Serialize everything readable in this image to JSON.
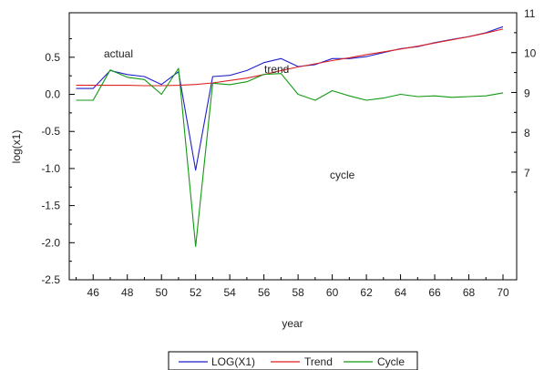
{
  "chart_data": {
    "type": "line",
    "xlabel": "year",
    "x_ticks": [
      "46",
      "48",
      "50",
      "52",
      "54",
      "56",
      "58",
      "60",
      "62",
      "64",
      "66",
      "68",
      "70"
    ],
    "left_axis": {
      "label": "log(x1)",
      "range": [
        -2.5,
        1.1
      ],
      "ticks": [
        "-2.5",
        "-2.0",
        "-1.5",
        "-1.0",
        "-0.5",
        "0.0",
        "0.5"
      ]
    },
    "right_axis": {
      "range": [
        4.3,
        11
      ],
      "ticks": [
        "7",
        "8",
        "9",
        "10",
        "11"
      ]
    },
    "annotations": [
      {
        "text": "actual",
        "series": "LOG(X1)"
      },
      {
        "text": "trend",
        "series": "Trend"
      },
      {
        "text": "cycle",
        "series": "Cycle"
      }
    ],
    "x": [
      45,
      46,
      47,
      48,
      49,
      50,
      51,
      52,
      53,
      54,
      55,
      56,
      57,
      58,
      59,
      60,
      61,
      62,
      63,
      64,
      65,
      66,
      67,
      68,
      69,
      70
    ],
    "series": [
      {
        "name": "LOG(X1)",
        "axis": "right",
        "color": "#1f1fcc",
        "values": [
          9.1,
          9.1,
          9.55,
          9.45,
          9.4,
          9.2,
          9.52,
          7.05,
          9.4,
          9.43,
          9.55,
          9.75,
          9.85,
          9.65,
          9.7,
          9.85,
          9.85,
          9.9,
          10.0,
          10.1,
          10.15,
          10.25,
          10.33,
          10.4,
          10.5,
          10.65
        ]
      },
      {
        "name": "Trend",
        "axis": "right",
        "color": "#dd2222",
        "values": [
          9.18,
          9.18,
          9.18,
          9.18,
          9.17,
          9.17,
          9.18,
          9.2,
          9.24,
          9.3,
          9.36,
          9.45,
          9.55,
          9.64,
          9.72,
          9.8,
          9.87,
          9.95,
          10.02,
          10.09,
          10.16,
          10.24,
          10.32,
          10.4,
          10.49,
          10.59
        ]
      },
      {
        "name": "Cycle",
        "axis": "left",
        "color": "#119911",
        "values": [
          -0.08,
          -0.08,
          0.33,
          0.23,
          0.2,
          0.0,
          0.35,
          -2.05,
          0.15,
          0.13,
          0.17,
          0.27,
          0.28,
          0.0,
          -0.08,
          0.05,
          -0.02,
          -0.08,
          -0.05,
          0.0,
          -0.03,
          -0.02,
          -0.04,
          -0.03,
          -0.02,
          0.02
        ]
      }
    ],
    "legend": {
      "placement": "bottom",
      "entries": [
        "LOG(X1)",
        "Trend",
        "Cycle"
      ]
    }
  }
}
